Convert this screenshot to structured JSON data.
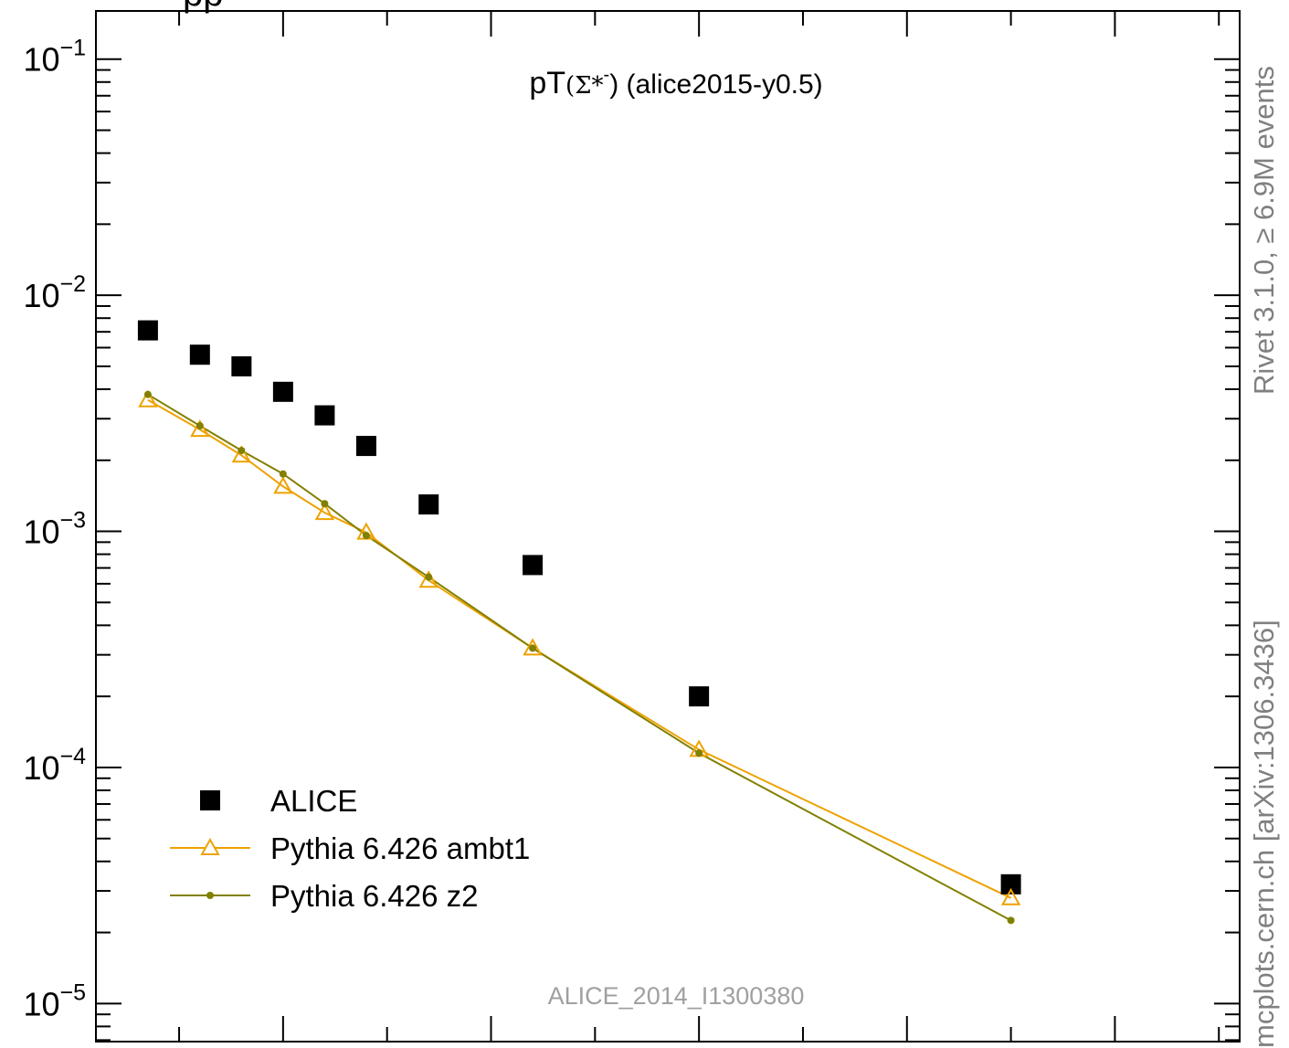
{
  "chart_data": {
    "type": "scatter",
    "title_main": "pT",
    "title_particle": "(Σ*",
    "title_charge": "-",
    "title_tail": ") (alice2015-y0.5)",
    "xlabel": "",
    "ylabel": "",
    "y_scale": "log",
    "ylim": [
      6.9e-06,
      0.16
    ],
    "xlim": [
      0.1,
      5.6
    ],
    "y_tick_labels": [
      {
        "value": 0.1,
        "base": "10",
        "exp": "−1"
      },
      {
        "value": 0.01,
        "base": "10",
        "exp": "−2"
      },
      {
        "value": 0.001,
        "base": "10",
        "exp": "−3"
      },
      {
        "value": 0.0001,
        "base": "10",
        "exp": "−4"
      },
      {
        "value": 1e-05,
        "base": "10",
        "exp": "−5"
      }
    ],
    "legend_position": "bottom-left",
    "series": [
      {
        "name": "ALICE",
        "style": "square",
        "color": "#000000",
        "x": [
          0.35,
          0.6,
          0.8,
          1.0,
          1.2,
          1.4,
          1.7,
          2.2,
          3.0,
          4.5
        ],
        "y": [
          0.0071,
          0.0056,
          0.005,
          0.0039,
          0.0031,
          0.0023,
          0.0013,
          0.00072,
          0.0002,
          3.2e-05
        ]
      },
      {
        "name": "Pythia 6.426 ambt1",
        "style": "triangle",
        "color": "#EEA200",
        "x": [
          0.35,
          0.6,
          0.8,
          1.0,
          1.2,
          1.4,
          1.7,
          2.2,
          3.0,
          4.5
        ],
        "y": [
          0.0036,
          0.0027,
          0.0021,
          0.00155,
          0.0012,
          0.00099,
          0.00062,
          0.00032,
          0.000119,
          2.8e-05
        ]
      },
      {
        "name": "Pythia 6.426 z2",
        "style": "dot",
        "color": "#828000",
        "x": [
          0.35,
          0.6,
          0.8,
          1.0,
          1.2,
          1.4,
          1.7,
          2.2,
          3.0,
          4.5
        ],
        "y": [
          0.0038,
          0.0028,
          0.0022,
          0.00175,
          0.00131,
          0.00096,
          0.00064,
          0.00032,
          0.000115,
          2.25e-05
        ]
      }
    ],
    "watermark": "ALICE_2014_I1300380",
    "top_label": "pp"
  },
  "side_labels": {
    "rivet": "Rivet 3.1.0, ≥ 6.9M events",
    "mcplots": "mcplots.cern.ch [arXiv:1306.3436]"
  }
}
